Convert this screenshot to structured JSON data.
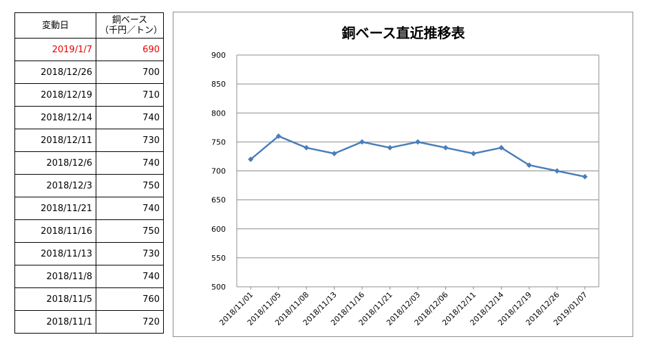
{
  "table": {
    "header_date": "変動日",
    "header_price_line1": "銅ベース",
    "header_price_line2": "（千円／トン）",
    "rows": [
      {
        "date": "2019/1/7",
        "price": "690"
      },
      {
        "date": "2018/12/26",
        "price": "700"
      },
      {
        "date": "2018/12/19",
        "price": "710"
      },
      {
        "date": "2018/12/14",
        "price": "740"
      },
      {
        "date": "2018/12/11",
        "price": "730"
      },
      {
        "date": "2018/12/6",
        "price": "740"
      },
      {
        "date": "2018/12/3",
        "price": "750"
      },
      {
        "date": "2018/11/21",
        "price": "740"
      },
      {
        "date": "2018/11/16",
        "price": "750"
      },
      {
        "date": "2018/11/13",
        "price": "730"
      },
      {
        "date": "2018/11/8",
        "price": "740"
      },
      {
        "date": "2018/11/5",
        "price": "760"
      },
      {
        "date": "2018/11/1",
        "price": "720"
      }
    ],
    "highlight_color": "#e60000"
  },
  "chart_data": {
    "type": "line",
    "title": "銅ベース直近推移表",
    "xlabel": "",
    "ylabel": "",
    "categories": [
      "2018/11/01",
      "2018/11/05",
      "2018/11/08",
      "2018/11/13",
      "2018/11/16",
      "2018/11/21",
      "2018/12/03",
      "2018/12/06",
      "2018/12/11",
      "2018/12/14",
      "2018/12/19",
      "2018/12/26",
      "2019/01/07"
    ],
    "series": [
      {
        "values": [
          720,
          760,
          740,
          730,
          750,
          740,
          750,
          740,
          730,
          740,
          710,
          700,
          690
        ],
        "color": "#4a7ebb"
      }
    ],
    "ylim": [
      500,
      900
    ],
    "yticks": [
      500,
      550,
      600,
      650,
      700,
      750,
      800,
      850,
      900
    ],
    "grid": true,
    "legend": "none",
    "marker": "diamond"
  }
}
